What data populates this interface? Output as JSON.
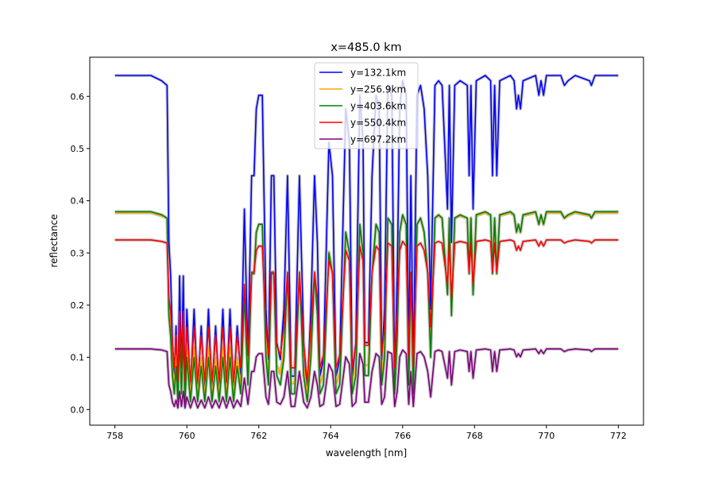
{
  "chart_data": {
    "type": "line",
    "title": "x=485.0 km",
    "xlabel": "wavelength [nm]",
    "ylabel": "reflectance",
    "xlim": [
      757.3,
      772.7
    ],
    "ylim": [
      -0.03,
      0.675
    ],
    "xticks": [
      758,
      760,
      762,
      764,
      766,
      768,
      770,
      772
    ],
    "xtick_labels": [
      "758",
      "760",
      "762",
      "764",
      "766",
      "768",
      "770",
      "772"
    ],
    "yticks": [
      0.0,
      0.1,
      0.2,
      0.3,
      0.4,
      0.5,
      0.6
    ],
    "ytick_labels": [
      "0.0",
      "0.1",
      "0.2",
      "0.3",
      "0.4",
      "0.5",
      "0.6"
    ],
    "grid": false,
    "legend_position": "top-center",
    "uncertainty_band_color": "#c8c8c8",
    "x": [
      758.0,
      759.0,
      759.3,
      759.45,
      759.5,
      759.55,
      759.6,
      759.65,
      759.7,
      759.75,
      759.8,
      759.85,
      759.9,
      759.95,
      760.0,
      760.1,
      760.2,
      760.3,
      760.4,
      760.5,
      760.6,
      760.7,
      760.8,
      760.9,
      761.0,
      761.1,
      761.2,
      761.3,
      761.4,
      761.5,
      761.6,
      761.7,
      761.8,
      761.87,
      761.93,
      762.0,
      762.1,
      762.2,
      762.27,
      762.35,
      762.42,
      762.5,
      762.6,
      762.7,
      762.8,
      762.9,
      763.0,
      763.13,
      763.25,
      763.35,
      763.45,
      763.55,
      763.63,
      763.7,
      763.8,
      763.95,
      764.05,
      764.15,
      764.25,
      764.42,
      764.52,
      764.6,
      764.7,
      764.81,
      764.9,
      764.95,
      765.05,
      765.15,
      765.26,
      765.35,
      765.42,
      765.5,
      765.59,
      765.7,
      765.78,
      765.85,
      765.92,
      766.0,
      766.1,
      766.17,
      766.23,
      766.3,
      766.4,
      766.5,
      766.6,
      766.7,
      766.78,
      766.9,
      767.0,
      767.1,
      767.25,
      767.3,
      767.36,
      767.45,
      767.6,
      767.8,
      767.85,
      767.9,
      767.96,
      768.05,
      768.3,
      768.45,
      768.5,
      768.56,
      768.62,
      768.7,
      769.0,
      769.1,
      769.17,
      769.22,
      769.28,
      769.35,
      769.7,
      769.79,
      769.85,
      769.92,
      770.0,
      770.4,
      770.5,
      770.6,
      770.8,
      771.2,
      771.25,
      771.35,
      772.0
    ],
    "series": [
      {
        "name": "y=132.1km",
        "color": "#0000ff",
        "values": [
          0.64,
          0.64,
          0.63,
          0.621,
          0.32,
          0.256,
          0.128,
          0.064,
          0.16,
          0.032,
          0.256,
          0.064,
          0.256,
          0.032,
          0.192,
          0.032,
          0.192,
          0.032,
          0.16,
          0.032,
          0.192,
          0.032,
          0.16,
          0.032,
          0.192,
          0.032,
          0.192,
          0.032,
          0.16,
          0.064,
          0.384,
          0.096,
          0.448,
          0.448,
          0.576,
          0.602,
          0.602,
          0.192,
          0.096,
          0.448,
          0.448,
          0.128,
          0.096,
          0.192,
          0.448,
          0.064,
          0.064,
          0.448,
          0.128,
          0.032,
          0.192,
          0.448,
          0.32,
          0.064,
          0.096,
          0.512,
          0.448,
          0.064,
          0.096,
          0.576,
          0.512,
          0.064,
          0.128,
          0.602,
          0.512,
          0.128,
          0.128,
          0.448,
          0.602,
          0.576,
          0.096,
          0.192,
          0.621,
          0.602,
          0.064,
          0.256,
          0.576,
          0.63,
          0.602,
          0.096,
          0.448,
          0.064,
          0.602,
          0.621,
          0.576,
          0.448,
          0.192,
          0.621,
          0.63,
          0.621,
          0.384,
          0.621,
          0.32,
          0.621,
          0.63,
          0.621,
          0.448,
          0.621,
          0.384,
          0.63,
          0.64,
          0.63,
          0.448,
          0.621,
          0.448,
          0.63,
          0.64,
          0.63,
          0.576,
          0.602,
          0.576,
          0.63,
          0.64,
          0.602,
          0.63,
          0.602,
          0.64,
          0.64,
          0.621,
          0.63,
          0.64,
          0.63,
          0.621,
          0.64,
          0.64
        ]
      },
      {
        "name": "y=256.9km",
        "color": "#ffa500",
        "values": [
          0.377,
          0.377,
          0.371,
          0.366,
          0.19,
          0.155,
          0.085,
          0.05,
          0.1,
          0.03,
          0.155,
          0.05,
          0.155,
          0.03,
          0.12,
          0.03,
          0.12,
          0.03,
          0.1,
          0.03,
          0.12,
          0.03,
          0.1,
          0.03,
          0.12,
          0.03,
          0.12,
          0.03,
          0.1,
          0.05,
          0.226,
          0.068,
          0.264,
          0.264,
          0.339,
          0.354,
          0.354,
          0.12,
          0.068,
          0.264,
          0.264,
          0.085,
          0.068,
          0.12,
          0.264,
          0.05,
          0.05,
          0.264,
          0.085,
          0.03,
          0.12,
          0.264,
          0.19,
          0.05,
          0.068,
          0.302,
          0.264,
          0.05,
          0.068,
          0.339,
          0.302,
          0.05,
          0.085,
          0.354,
          0.302,
          0.085,
          0.085,
          0.264,
          0.354,
          0.339,
          0.068,
          0.12,
          0.366,
          0.354,
          0.05,
          0.155,
          0.339,
          0.371,
          0.354,
          0.068,
          0.264,
          0.05,
          0.354,
          0.366,
          0.339,
          0.264,
          0.12,
          0.366,
          0.371,
          0.366,
          0.226,
          0.366,
          0.19,
          0.366,
          0.371,
          0.366,
          0.264,
          0.366,
          0.226,
          0.371,
          0.377,
          0.371,
          0.264,
          0.366,
          0.264,
          0.371,
          0.377,
          0.371,
          0.339,
          0.354,
          0.339,
          0.371,
          0.377,
          0.354,
          0.371,
          0.354,
          0.377,
          0.377,
          0.366,
          0.371,
          0.377,
          0.371,
          0.366,
          0.377,
          0.377
        ]
      },
      {
        "name": "y=403.6km",
        "color": "#008000",
        "values": [
          0.379,
          0.379,
          0.373,
          0.367,
          0.18,
          0.14,
          0.065,
          0.03,
          0.083,
          0.015,
          0.14,
          0.03,
          0.14,
          0.015,
          0.1,
          0.015,
          0.1,
          0.015,
          0.083,
          0.015,
          0.1,
          0.015,
          0.083,
          0.015,
          0.1,
          0.015,
          0.1,
          0.015,
          0.083,
          0.03,
          0.22,
          0.047,
          0.26,
          0.26,
          0.34,
          0.355,
          0.355,
          0.1,
          0.047,
          0.26,
          0.26,
          0.065,
          0.047,
          0.1,
          0.26,
          0.03,
          0.03,
          0.26,
          0.065,
          0.015,
          0.1,
          0.26,
          0.18,
          0.03,
          0.047,
          0.3,
          0.26,
          0.03,
          0.047,
          0.34,
          0.3,
          0.03,
          0.065,
          0.355,
          0.3,
          0.065,
          0.065,
          0.26,
          0.355,
          0.34,
          0.047,
          0.1,
          0.367,
          0.355,
          0.03,
          0.14,
          0.34,
          0.373,
          0.355,
          0.047,
          0.26,
          0.03,
          0.355,
          0.367,
          0.34,
          0.26,
          0.1,
          0.367,
          0.373,
          0.367,
          0.22,
          0.367,
          0.18,
          0.367,
          0.373,
          0.367,
          0.26,
          0.367,
          0.22,
          0.373,
          0.379,
          0.373,
          0.26,
          0.367,
          0.26,
          0.373,
          0.379,
          0.373,
          0.34,
          0.355,
          0.34,
          0.373,
          0.379,
          0.355,
          0.373,
          0.355,
          0.379,
          0.379,
          0.367,
          0.373,
          0.379,
          0.373,
          0.367,
          0.379,
          0.379
        ]
      },
      {
        "name": "y=550.4km",
        "color": "#ff0000",
        "values": [
          0.325,
          0.325,
          0.322,
          0.319,
          0.214,
          0.188,
          0.123,
          0.08,
          0.142,
          0.053,
          0.188,
          0.08,
          0.188,
          0.053,
          0.158,
          0.053,
          0.158,
          0.053,
          0.142,
          0.053,
          0.158,
          0.053,
          0.142,
          0.053,
          0.158,
          0.053,
          0.158,
          0.053,
          0.142,
          0.08,
          0.24,
          0.104,
          0.263,
          0.263,
          0.305,
          0.313,
          0.313,
          0.158,
          0.104,
          0.263,
          0.263,
          0.123,
          0.104,
          0.158,
          0.263,
          0.08,
          0.08,
          0.263,
          0.123,
          0.053,
          0.158,
          0.263,
          0.214,
          0.08,
          0.104,
          0.285,
          0.263,
          0.08,
          0.104,
          0.305,
          0.285,
          0.08,
          0.123,
          0.313,
          0.285,
          0.123,
          0.123,
          0.263,
          0.313,
          0.305,
          0.104,
          0.158,
          0.319,
          0.313,
          0.08,
          0.188,
          0.305,
          0.322,
          0.313,
          0.104,
          0.263,
          0.08,
          0.313,
          0.319,
          0.305,
          0.263,
          0.158,
          0.319,
          0.322,
          0.319,
          0.24,
          0.319,
          0.214,
          0.319,
          0.322,
          0.319,
          0.263,
          0.319,
          0.24,
          0.322,
          0.325,
          0.322,
          0.263,
          0.319,
          0.263,
          0.322,
          0.325,
          0.322,
          0.305,
          0.313,
          0.305,
          0.322,
          0.325,
          0.313,
          0.322,
          0.313,
          0.325,
          0.325,
          0.319,
          0.322,
          0.325,
          0.322,
          0.319,
          0.325,
          0.325
        ]
      },
      {
        "name": "y=697.2km",
        "color": "#800080",
        "values": [
          0.116,
          0.116,
          0.114,
          0.111,
          0.047,
          0.035,
          0.014,
          0.006,
          0.018,
          0.003,
          0.035,
          0.006,
          0.035,
          0.003,
          0.024,
          0.003,
          0.024,
          0.003,
          0.018,
          0.003,
          0.024,
          0.003,
          0.018,
          0.003,
          0.024,
          0.003,
          0.024,
          0.003,
          0.018,
          0.006,
          0.06,
          0.01,
          0.073,
          0.073,
          0.101,
          0.107,
          0.107,
          0.024,
          0.01,
          0.073,
          0.073,
          0.014,
          0.01,
          0.024,
          0.073,
          0.006,
          0.006,
          0.073,
          0.014,
          0.003,
          0.024,
          0.073,
          0.047,
          0.006,
          0.01,
          0.087,
          0.073,
          0.006,
          0.01,
          0.101,
          0.087,
          0.006,
          0.014,
          0.107,
          0.087,
          0.014,
          0.014,
          0.073,
          0.107,
          0.101,
          0.01,
          0.024,
          0.111,
          0.107,
          0.006,
          0.035,
          0.101,
          0.114,
          0.107,
          0.01,
          0.073,
          0.006,
          0.107,
          0.111,
          0.101,
          0.073,
          0.024,
          0.111,
          0.114,
          0.111,
          0.06,
          0.111,
          0.047,
          0.111,
          0.114,
          0.111,
          0.073,
          0.111,
          0.06,
          0.114,
          0.116,
          0.114,
          0.073,
          0.111,
          0.073,
          0.114,
          0.116,
          0.114,
          0.101,
          0.107,
          0.101,
          0.114,
          0.116,
          0.107,
          0.114,
          0.107,
          0.116,
          0.116,
          0.111,
          0.114,
          0.116,
          0.114,
          0.111,
          0.116,
          0.116
        ]
      }
    ]
  }
}
